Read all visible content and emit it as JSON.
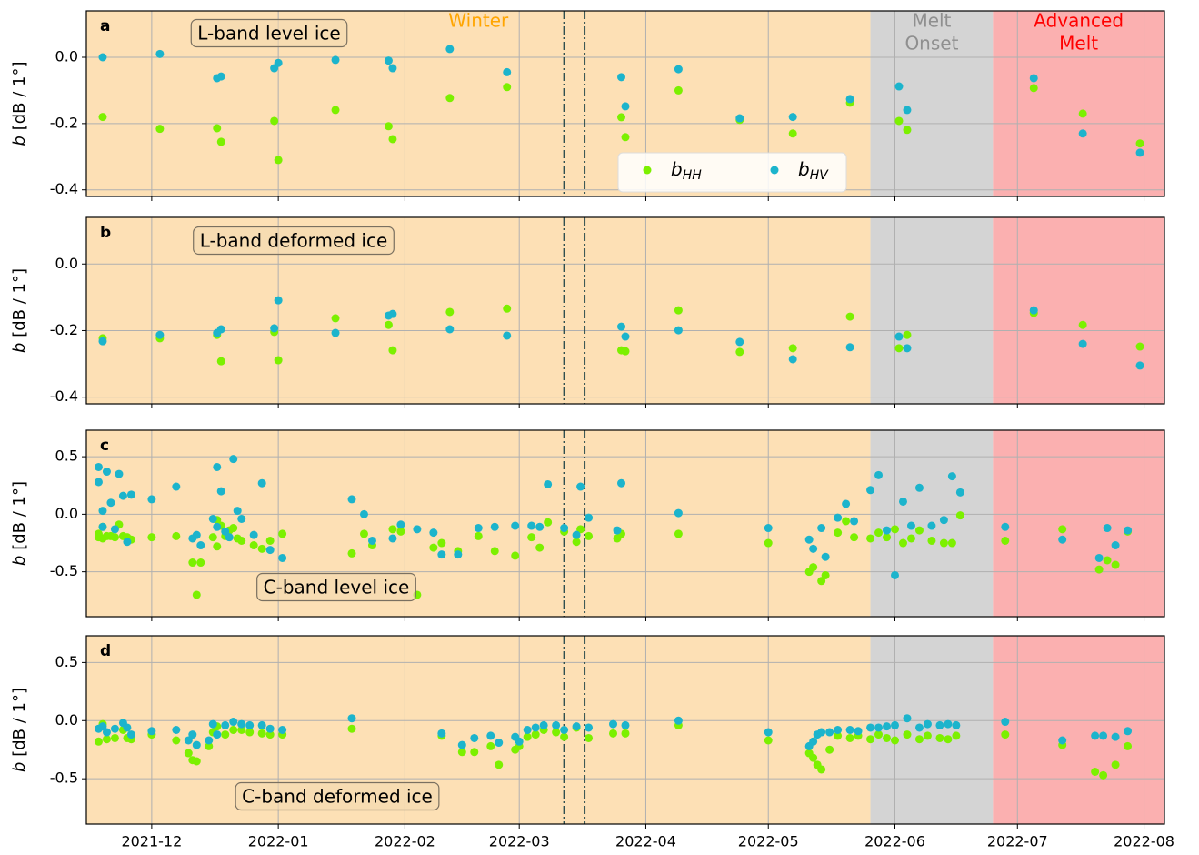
{
  "shared_x": {
    "xlim": [
      "2021-11-15",
      "2022-08-06"
    ],
    "xticks": [
      {
        "value": "2021-12-01",
        "label": "2021-12"
      },
      {
        "value": "2022-01-01",
        "label": "2022-01"
      },
      {
        "value": "2022-02-01",
        "label": "2022-02"
      },
      {
        "value": "2022-03-01",
        "label": "2022-03"
      },
      {
        "value": "2022-04-01",
        "label": "2022-04"
      },
      {
        "value": "2022-05-01",
        "label": "2022-05"
      },
      {
        "value": "2022-06-01",
        "label": "2022-06"
      },
      {
        "value": "2022-07-01",
        "label": "2022-07"
      },
      {
        "value": "2022-08-01",
        "label": "2022-08"
      }
    ]
  },
  "periods": [
    {
      "label": [
        "Winter"
      ],
      "color": "#fde0b5",
      "text_color": "#ffa500"
    },
    {
      "label": [
        "Melt",
        "Onset"
      ],
      "color": "#d4d4d4",
      "text_color": "#8f8f8f"
    },
    {
      "label": [
        "Advanced",
        "Melt"
      ],
      "color": "#fbb0b0",
      "text_color": "#ff0000"
    }
  ],
  "period_bounds": [
    "2022-05-26",
    "2022-06-25"
  ],
  "event_lines": [
    "2022-03-12",
    "2022-03-17"
  ],
  "grid": true,
  "chart_data": [
    {
      "type": "scatter",
      "panel_label": "a",
      "annotation": "L-band level ice",
      "ylabel": "b [dB / 1°]",
      "ylim": [
        -0.42,
        0.14
      ],
      "yticks": [
        -0.4,
        -0.2,
        {
          "value": 0,
          "label": "0.0"
        }
      ],
      "legend": "lower right",
      "x": [
        "2021-11-19",
        "2021-12-03",
        "2021-12-17",
        "2021-12-18",
        "2021-12-31",
        "2022-01-01",
        "2022-01-15",
        "2022-01-28",
        "2022-01-29",
        "2022-02-12",
        "2022-02-26",
        "2022-03-26",
        "2022-03-27",
        "2022-04-09",
        "2022-04-24",
        "2022-05-07",
        "2022-05-21",
        "2022-06-02",
        "2022-06-04",
        "2022-07-05",
        "2022-07-17",
        "2022-07-31"
      ],
      "series": [
        {
          "name": "bHH",
          "color": "#7cf000",
          "values": [
            -0.18,
            -0.216,
            -0.214,
            -0.255,
            -0.192,
            -0.31,
            -0.159,
            -0.208,
            -0.247,
            -0.123,
            -0.09,
            -0.181,
            -0.241,
            -0.1,
            -0.189,
            -0.23,
            -0.137,
            -0.192,
            -0.219,
            -0.093,
            -0.17,
            -0.26
          ]
        },
        {
          "name": "bHV",
          "color": "#1cb4cc",
          "values": [
            0.0,
            0.01,
            -0.063,
            -0.058,
            -0.033,
            -0.017,
            -0.008,
            -0.01,
            -0.033,
            0.025,
            -0.045,
            -0.06,
            -0.148,
            -0.036,
            -0.184,
            -0.18,
            -0.126,
            -0.088,
            -0.159,
            -0.063,
            -0.23,
            -0.288
          ]
        }
      ]
    },
    {
      "type": "scatter",
      "panel_label": "b",
      "annotation": "L-band deformed ice",
      "ylabel": "b [dB / 1°]",
      "ylim": [
        -0.42,
        0.14
      ],
      "yticks": [
        -0.4,
        -0.2,
        {
          "value": 0,
          "label": "0.0"
        }
      ],
      "x": [
        "2021-11-19",
        "2021-12-03",
        "2021-12-17",
        "2021-12-18",
        "2021-12-31",
        "2022-01-01",
        "2022-01-15",
        "2022-01-28",
        "2022-01-29",
        "2022-02-12",
        "2022-02-26",
        "2022-03-26",
        "2022-03-27",
        "2022-04-09",
        "2022-04-24",
        "2022-05-07",
        "2022-05-21",
        "2022-06-02",
        "2022-06-04",
        "2022-07-05",
        "2022-07-17",
        "2022-07-31"
      ],
      "series": [
        {
          "color": "#7cf000",
          "values": [
            -0.223,
            -0.223,
            -0.213,
            -0.292,
            -0.204,
            -0.289,
            -0.163,
            -0.183,
            -0.259,
            -0.144,
            -0.134,
            -0.259,
            -0.262,
            -0.139,
            -0.264,
            -0.253,
            -0.158,
            -0.253,
            -0.213,
            -0.147,
            -0.183,
            -0.248
          ]
        },
        {
          "color": "#1cb4cc",
          "values": [
            -0.232,
            -0.213,
            -0.207,
            -0.196,
            -0.193,
            -0.109,
            -0.207,
            -0.155,
            -0.15,
            -0.196,
            -0.215,
            -0.188,
            -0.218,
            -0.199,
            -0.234,
            -0.286,
            -0.25,
            -0.218,
            -0.253,
            -0.139,
            -0.24,
            -0.305
          ]
        }
      ]
    },
    {
      "type": "scatter",
      "panel_label": "c",
      "annotation": "C-band level ice",
      "ylabel": "b [dB / 1°]",
      "ylim": [
        -0.89,
        0.73
      ],
      "yticks": [
        -0.5,
        {
          "value": 0,
          "label": "0.0"
        },
        0.5
      ],
      "x": [
        "2021-11-18",
        "2021-11-18",
        "2021-11-19",
        "2021-11-19",
        "2021-11-20",
        "2021-11-21",
        "2021-11-22",
        "2021-11-23",
        "2021-11-24",
        "2021-11-25",
        "2021-11-26",
        "2021-12-01",
        "2021-12-07",
        "2021-12-11",
        "2021-12-12",
        "2021-12-13",
        "2021-12-16",
        "2021-12-17",
        "2021-12-17",
        "2021-12-18",
        "2021-12-19",
        "2021-12-20",
        "2021-12-21",
        "2021-12-22",
        "2021-12-23",
        "2021-12-26",
        "2021-12-28",
        "2021-12-30",
        "2022-01-02",
        "2022-01-19",
        "2022-01-22",
        "2022-01-24",
        "2022-01-29",
        "2022-01-31",
        "2022-02-04",
        "2022-02-08",
        "2022-02-10",
        "2022-02-14",
        "2022-02-19",
        "2022-02-23",
        "2022-02-28",
        "2022-03-04",
        "2022-03-06",
        "2022-03-08",
        "2022-03-12",
        "2022-03-15",
        "2022-03-16",
        "2022-03-18",
        "2022-03-25",
        "2022-03-26",
        "2022-04-09",
        "2022-05-01",
        "2022-05-11",
        "2022-05-12",
        "2022-05-14",
        "2022-05-15",
        "2022-05-18",
        "2022-05-20",
        "2022-05-22",
        "2022-05-26",
        "2022-05-28",
        "2022-05-30",
        "2022-06-01",
        "2022-06-03",
        "2022-06-05",
        "2022-06-07",
        "2022-06-10",
        "2022-06-13",
        "2022-06-15",
        "2022-06-17",
        "2022-06-28",
        "2022-07-12",
        "2022-07-21",
        "2022-07-23",
        "2022-07-25",
        "2022-07-28"
      ],
      "series": [
        {
          "color": "#7cf000",
          "values": [
            -0.2,
            -0.17,
            -0.11,
            -0.21,
            -0.19,
            -0.19,
            -0.2,
            -0.09,
            -0.19,
            -0.2,
            -0.22,
            -0.2,
            -0.19,
            -0.42,
            -0.7,
            -0.42,
            -0.2,
            -0.28,
            -0.05,
            -0.1,
            -0.19,
            -0.14,
            -0.12,
            -0.21,
            -0.23,
            -0.27,
            -0.3,
            -0.23,
            -0.17,
            -0.34,
            -0.17,
            -0.27,
            -0.13,
            -0.15,
            -0.7,
            -0.29,
            -0.25,
            -0.32,
            -0.19,
            -0.32,
            -0.36,
            -0.2,
            -0.29,
            -0.07,
            -0.15,
            -0.24,
            -0.13,
            -0.19,
            -0.21,
            -0.17,
            -0.17,
            -0.25,
            -0.5,
            -0.46,
            -0.58,
            -0.53,
            -0.16,
            -0.06,
            -0.2,
            -0.21,
            -0.16,
            -0.2,
            -0.13,
            -0.25,
            -0.21,
            -0.14,
            -0.23,
            -0.25,
            -0.25,
            -0.01,
            -0.23,
            -0.13,
            -0.48,
            -0.4,
            -0.44,
            -0.15
          ]
        },
        {
          "color": "#1cb4cc",
          "values": [
            0.41,
            0.28,
            0.03,
            -0.11,
            0.37,
            0.1,
            -0.13,
            0.35,
            0.16,
            -0.24,
            0.17,
            0.13,
            0.24,
            -0.21,
            -0.18,
            -0.27,
            -0.04,
            0.41,
            -0.11,
            0.2,
            -0.15,
            -0.2,
            0.48,
            0.03,
            -0.04,
            -0.18,
            0.27,
            -0.31,
            -0.38,
            0.13,
            0.0,
            -0.23,
            -0.21,
            -0.09,
            -0.13,
            -0.16,
            -0.35,
            -0.35,
            -0.12,
            -0.11,
            -0.1,
            -0.1,
            -0.11,
            0.26,
            -0.12,
            -0.18,
            0.24,
            -0.03,
            -0.14,
            0.27,
            0.01,
            -0.12,
            -0.22,
            -0.3,
            -0.12,
            -0.37,
            -0.03,
            0.09,
            -0.06,
            0.21,
            0.34,
            -0.14,
            -0.53,
            0.11,
            -0.1,
            0.23,
            -0.1,
            -0.05,
            0.33,
            0.19,
            -0.11,
            -0.22,
            -0.38,
            -0.12,
            -0.27,
            -0.14
          ]
        }
      ]
    },
    {
      "type": "scatter",
      "panel_label": "d",
      "annotation": "C-band deformed ice",
      "ylabel": "b [dB / 1°]",
      "ylim": [
        -0.89,
        0.73
      ],
      "yticks": [
        -0.5,
        {
          "value": 0,
          "label": "0.0"
        },
        0.5
      ],
      "x": [
        "2021-11-18",
        "2021-11-19",
        "2021-11-20",
        "2021-11-22",
        "2021-11-24",
        "2021-11-25",
        "2021-11-26",
        "2021-12-01",
        "2021-12-07",
        "2021-12-10",
        "2021-12-11",
        "2021-12-12",
        "2021-12-15",
        "2021-12-16",
        "2021-12-17",
        "2021-12-19",
        "2021-12-21",
        "2021-12-23",
        "2021-12-25",
        "2021-12-28",
        "2021-12-30",
        "2022-01-02",
        "2022-01-19",
        "2022-02-10",
        "2022-02-15",
        "2022-02-18",
        "2022-02-22",
        "2022-02-24",
        "2022-02-28",
        "2022-03-01",
        "2022-03-03",
        "2022-03-05",
        "2022-03-07",
        "2022-03-10",
        "2022-03-12",
        "2022-03-15",
        "2022-03-18",
        "2022-03-24",
        "2022-03-27",
        "2022-04-09",
        "2022-05-01",
        "2022-05-11",
        "2022-05-12",
        "2022-05-13",
        "2022-05-14",
        "2022-05-16",
        "2022-05-18",
        "2022-05-21",
        "2022-05-23",
        "2022-05-26",
        "2022-05-28",
        "2022-05-30",
        "2022-06-01",
        "2022-06-04",
        "2022-06-07",
        "2022-06-09",
        "2022-06-12",
        "2022-06-14",
        "2022-06-16",
        "2022-06-28",
        "2022-07-12",
        "2022-07-20",
        "2022-07-22",
        "2022-07-25",
        "2022-07-28"
      ],
      "series": [
        {
          "color": "#7cf000",
          "values": [
            -0.18,
            -0.03,
            -0.16,
            -0.15,
            -0.08,
            -0.15,
            -0.16,
            -0.12,
            -0.17,
            -0.28,
            -0.34,
            -0.35,
            -0.22,
            -0.1,
            -0.05,
            -0.12,
            -0.08,
            -0.08,
            -0.1,
            -0.11,
            -0.12,
            -0.12,
            -0.07,
            -0.13,
            -0.27,
            -0.27,
            -0.22,
            -0.38,
            -0.25,
            -0.22,
            -0.14,
            -0.12,
            -0.08,
            -0.1,
            -0.14,
            -0.06,
            -0.15,
            -0.11,
            -0.11,
            -0.04,
            -0.17,
            -0.28,
            -0.32,
            -0.38,
            -0.42,
            -0.25,
            -0.13,
            -0.15,
            -0.13,
            -0.16,
            -0.12,
            -0.15,
            -0.17,
            -0.12,
            -0.16,
            -0.13,
            -0.15,
            -0.16,
            -0.13,
            -0.12,
            -0.21,
            -0.44,
            -0.47,
            -0.38,
            -0.22
          ]
        },
        {
          "color": "#1cb4cc",
          "values": [
            -0.07,
            -0.05,
            -0.1,
            -0.07,
            -0.02,
            -0.06,
            -0.12,
            -0.09,
            -0.08,
            -0.17,
            -0.12,
            -0.21,
            -0.17,
            -0.03,
            -0.12,
            -0.04,
            -0.01,
            -0.03,
            -0.04,
            -0.04,
            -0.07,
            -0.08,
            0.02,
            -0.11,
            -0.21,
            -0.15,
            -0.13,
            -0.19,
            -0.14,
            -0.18,
            -0.08,
            -0.06,
            -0.04,
            -0.04,
            -0.08,
            -0.05,
            -0.06,
            -0.03,
            -0.04,
            0.0,
            -0.1,
            -0.22,
            -0.18,
            -0.12,
            -0.1,
            -0.1,
            -0.08,
            -0.08,
            -0.09,
            -0.06,
            -0.06,
            -0.05,
            -0.04,
            0.02,
            -0.06,
            -0.03,
            -0.04,
            -0.03,
            -0.04,
            -0.01,
            -0.17,
            -0.13,
            -0.13,
            -0.14,
            -0.09
          ]
        }
      ]
    }
  ]
}
